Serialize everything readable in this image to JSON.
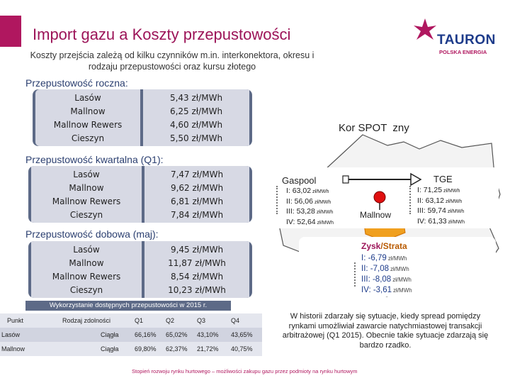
{
  "header": {
    "title": "Import gazu a Koszty przepustowości",
    "subtitle": "Koszty przejścia zależą od kilku czynników m.in. interkonektora, okresu i rodzaju przepustowości oraz kursu złotego"
  },
  "logo": {
    "name": "TAURON",
    "sub": "POLSKA ENERGIA",
    "colors": {
      "primary": "#1d3b8a",
      "accent": "#b0175f"
    }
  },
  "annual": {
    "label": "Przepustowość roczna:",
    "points": [
      "Lasów",
      "Mallnow",
      "Mallnow Rewers",
      "Cieszyn"
    ],
    "costs": [
      "5,43 zł/MWh",
      "6,25 zł/MWh",
      "4,60 zł/MWh",
      "5,50 zł/MWh"
    ]
  },
  "quarterly": {
    "label": "Przepustowość kwartalna (Q1):",
    "points": [
      "Lasów",
      "Mallnow",
      "Mallnow Rewers",
      "Cieszyn"
    ],
    "costs": [
      "7,47 zł/MWh",
      "9,62 zł/MWh",
      "6,81 zł/MWh",
      "7,84 zł/MWh"
    ]
  },
  "daily": {
    "label": "Przepustowość dobowa (maj):",
    "points": [
      "Lasów",
      "Mallnow",
      "Mallnow Rewers",
      "Cieszyn"
    ],
    "costs": [
      "9,45 zł/MWh",
      "11,87 zł/MWh",
      "8,54 zł/MWh",
      "10,23 zł/MWh"
    ]
  },
  "map": {
    "title_left": "Kor",
    "title_mid": "SPOT",
    "title_right": "zny",
    "gaspool": {
      "name": "Gaspool",
      "prices": [
        "I: 63,02",
        "II: 56,06",
        "III: 53,28",
        "IV: 52,64"
      ],
      "unit": "zł/MWh"
    },
    "tge": {
      "name": "TGE",
      "prices": [
        "I: 71,25",
        "II: 63,12",
        "III: 59,74",
        "IV: 61,33"
      ],
      "unit": "zł/MWh"
    },
    "mallnow_label": "Mallnow",
    "zysk": {
      "title_a": "Zysk",
      "sep": "/",
      "title_b": "Strata",
      "values": [
        "I: -6,79",
        "II: -7,08",
        "III: -8,08",
        "IV: -3,61"
      ],
      "unit": "zł/MWh"
    }
  },
  "usage_table": {
    "caption": "Wykorzystanie dostępnych przepustowości w 2015 r.",
    "columns": [
      "Punkt",
      "Rodzaj zdolności",
      "Q1",
      "Q2",
      "Q3",
      "Q4"
    ],
    "rows": [
      [
        "Lasów",
        "Ciągła",
        "66,16%",
        "65,02%",
        "43,10%",
        "43,65%"
      ],
      [
        "Mallnow",
        "Ciągła",
        "69,80%",
        "62,37%",
        "21,72%",
        "40,75%"
      ]
    ]
  },
  "history_text": "W historii zdarzały się sytuacje, kiedy spread pomiędzy rynkami umożliwiał zawarcie natychmiastowej transakcji arbitrażowej (Q1 2015). Obecnie takie sytuacje zdarzają się bardzo rzadko.",
  "footer": "Stopień rozwoju rynku hurtowego – możliwości zakupu gazu przez podmioty na rynku hurtowym"
}
